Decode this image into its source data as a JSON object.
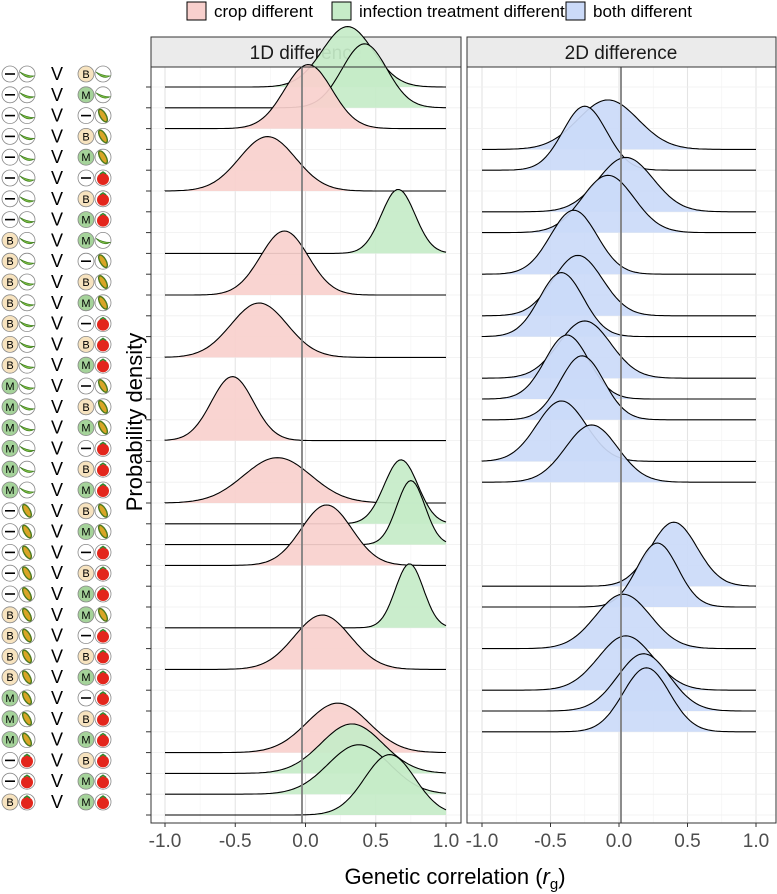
{
  "chart_data": {
    "type": "ridgeline-density",
    "xlabel": "Genetic correlation",
    "xlabel_symbol": "r",
    "xlabel_subscript": "g",
    "ylabel": "Probability density",
    "xlim": [
      -1.0,
      1.0
    ],
    "xticks": [
      -1.0,
      -0.5,
      0.0,
      0.5,
      1.0
    ],
    "xtick_labels": [
      "-1.0",
      "-0.5",
      "0.0",
      "0.5",
      "1.0"
    ],
    "reference_line_x": 0,
    "separator": "V",
    "legend": [
      {
        "key": "crop",
        "label": "crop different",
        "fill": "#f8d0cd"
      },
      {
        "key": "infection",
        "label": "infection treatment different",
        "fill": "#c6ecc8"
      },
      {
        "key": "both",
        "label": "both different",
        "fill": "#cbdaf8"
      }
    ],
    "panels": [
      {
        "title": "1D difference"
      },
      {
        "title": "2D difference"
      }
    ],
    "conditions": [
      {
        "id": "none",
        "label": "—",
        "color": "#ffffff"
      },
      {
        "id": "B",
        "label": "B",
        "color": "#f7e3bf"
      },
      {
        "id": "M",
        "label": "M",
        "color": "#a5d39a"
      }
    ],
    "crops": [
      {
        "id": "bean",
        "color": "#7ec142"
      },
      {
        "id": "maize",
        "color": "#6e9a2a"
      },
      {
        "id": "tomato",
        "color": "#e3261c"
      }
    ],
    "comparisons": [
      {
        "left": [
          "none",
          "bean"
        ],
        "right": [
          "B",
          "bean"
        ],
        "panel": 1,
        "cat": "infection",
        "mean": 0.3,
        "sd": 0.18
      },
      {
        "left": [
          "none",
          "bean"
        ],
        "right": [
          "M",
          "bean"
        ],
        "panel": 1,
        "cat": "infection",
        "mean": 0.42,
        "sd": 0.16
      },
      {
        "left": [
          "none",
          "bean"
        ],
        "right": [
          "none",
          "maize"
        ],
        "panel": 1,
        "cat": "crop",
        "mean": 0.02,
        "sd": 0.17
      },
      {
        "left": [
          "none",
          "bean"
        ],
        "right": [
          "B",
          "maize"
        ],
        "panel": 2,
        "cat": "both",
        "mean": -0.08,
        "sd": 0.22
      },
      {
        "left": [
          "none",
          "bean"
        ],
        "right": [
          "M",
          "maize"
        ],
        "panel": 2,
        "cat": "both",
        "mean": -0.25,
        "sd": 0.16
      },
      {
        "left": [
          "none",
          "bean"
        ],
        "right": [
          "none",
          "tomato"
        ],
        "panel": 1,
        "cat": "crop",
        "mean": -0.27,
        "sd": 0.2
      },
      {
        "left": [
          "none",
          "bean"
        ],
        "right": [
          "B",
          "tomato"
        ],
        "panel": 2,
        "cat": "both",
        "mean": 0.05,
        "sd": 0.2
      },
      {
        "left": [
          "none",
          "bean"
        ],
        "right": [
          "M",
          "tomato"
        ],
        "panel": 2,
        "cat": "both",
        "mean": -0.08,
        "sd": 0.19
      },
      {
        "left": [
          "B",
          "bean"
        ],
        "right": [
          "M",
          "bean"
        ],
        "panel": 1,
        "cat": "infection",
        "mean": 0.66,
        "sd": 0.12
      },
      {
        "left": [
          "B",
          "bean"
        ],
        "right": [
          "none",
          "maize"
        ],
        "panel": 2,
        "cat": "both",
        "mean": -0.33,
        "sd": 0.17
      },
      {
        "left": [
          "B",
          "bean"
        ],
        "right": [
          "B",
          "maize"
        ],
        "panel": 1,
        "cat": "crop",
        "mean": -0.15,
        "sd": 0.17
      },
      {
        "left": [
          "B",
          "bean"
        ],
        "right": [
          "M",
          "maize"
        ],
        "panel": 2,
        "cat": "both",
        "mean": -0.3,
        "sd": 0.18
      },
      {
        "left": [
          "B",
          "bean"
        ],
        "right": [
          "none",
          "tomato"
        ],
        "panel": 2,
        "cat": "both",
        "mean": -0.42,
        "sd": 0.16
      },
      {
        "left": [
          "B",
          "bean"
        ],
        "right": [
          "B",
          "tomato"
        ],
        "panel": 1,
        "cat": "crop",
        "mean": -0.33,
        "sd": 0.2
      },
      {
        "left": [
          "B",
          "bean"
        ],
        "right": [
          "M",
          "tomato"
        ],
        "panel": 2,
        "cat": "both",
        "mean": -0.25,
        "sd": 0.19
      },
      {
        "left": [
          "M",
          "bean"
        ],
        "right": [
          "none",
          "maize"
        ],
        "panel": 2,
        "cat": "both",
        "mean": -0.38,
        "sd": 0.16
      },
      {
        "left": [
          "M",
          "bean"
        ],
        "right": [
          "B",
          "maize"
        ],
        "panel": 2,
        "cat": "both",
        "mean": -0.27,
        "sd": 0.16
      },
      {
        "left": [
          "M",
          "bean"
        ],
        "right": [
          "M",
          "maize"
        ],
        "panel": 1,
        "cat": "crop",
        "mean": -0.52,
        "sd": 0.15
      },
      {
        "left": [
          "M",
          "bean"
        ],
        "right": [
          "none",
          "tomato"
        ],
        "panel": 2,
        "cat": "both",
        "mean": -0.42,
        "sd": 0.18
      },
      {
        "left": [
          "M",
          "bean"
        ],
        "right": [
          "B",
          "tomato"
        ],
        "panel": 2,
        "cat": "both",
        "mean": -0.2,
        "sd": 0.19
      },
      {
        "left": [
          "M",
          "bean"
        ],
        "right": [
          "M",
          "tomato"
        ],
        "panel": 1,
        "cat": "crop",
        "mean": -0.2,
        "sd": 0.24
      },
      {
        "left": [
          "none",
          "maize"
        ],
        "right": [
          "B",
          "maize"
        ],
        "panel": 1,
        "cat": "infection",
        "mean": 0.68,
        "sd": 0.12
      },
      {
        "left": [
          "none",
          "maize"
        ],
        "right": [
          "M",
          "maize"
        ],
        "panel": 1,
        "cat": "infection",
        "mean": 0.75,
        "sd": 0.1
      },
      {
        "left": [
          "none",
          "maize"
        ],
        "right": [
          "none",
          "tomato"
        ],
        "panel": 1,
        "cat": "crop",
        "mean": 0.15,
        "sd": 0.18
      },
      {
        "left": [
          "none",
          "maize"
        ],
        "right": [
          "B",
          "tomato"
        ],
        "panel": 2,
        "cat": "both",
        "mean": 0.4,
        "sd": 0.17
      },
      {
        "left": [
          "none",
          "maize"
        ],
        "right": [
          "M",
          "tomato"
        ],
        "panel": 2,
        "cat": "both",
        "mean": 0.28,
        "sd": 0.15
      },
      {
        "left": [
          "B",
          "maize"
        ],
        "right": [
          "M",
          "maize"
        ],
        "panel": 1,
        "cat": "infection",
        "mean": 0.74,
        "sd": 0.1
      },
      {
        "left": [
          "B",
          "maize"
        ],
        "right": [
          "none",
          "tomato"
        ],
        "panel": 2,
        "cat": "both",
        "mean": 0.03,
        "sd": 0.2
      },
      {
        "left": [
          "B",
          "maize"
        ],
        "right": [
          "B",
          "tomato"
        ],
        "panel": 1,
        "cat": "crop",
        "mean": 0.12,
        "sd": 0.2
      },
      {
        "left": [
          "B",
          "maize"
        ],
        "right": [
          "M",
          "tomato"
        ],
        "panel": 2,
        "cat": "both",
        "mean": 0.05,
        "sd": 0.2
      },
      {
        "left": [
          "M",
          "maize"
        ],
        "right": [
          "none",
          "tomato"
        ],
        "panel": 2,
        "cat": "both",
        "mean": 0.18,
        "sd": 0.19
      },
      {
        "left": [
          "M",
          "maize"
        ],
        "right": [
          "B",
          "tomato"
        ],
        "panel": 2,
        "cat": "both",
        "mean": 0.2,
        "sd": 0.17
      },
      {
        "left": [
          "M",
          "maize"
        ],
        "right": [
          "M",
          "tomato"
        ],
        "panel": 1,
        "cat": "crop",
        "mean": 0.23,
        "sd": 0.22
      },
      {
        "left": [
          "none",
          "tomato"
        ],
        "right": [
          "B",
          "tomato"
        ],
        "panel": 1,
        "cat": "infection",
        "mean": 0.33,
        "sd": 0.22
      },
      {
        "left": [
          "none",
          "tomato"
        ],
        "right": [
          "M",
          "tomato"
        ],
        "panel": 1,
        "cat": "infection",
        "mean": 0.38,
        "sd": 0.22
      },
      {
        "left": [
          "B",
          "tomato"
        ],
        "right": [
          "M",
          "tomato"
        ],
        "panel": 1,
        "cat": "infection",
        "mean": 0.6,
        "sd": 0.18
      }
    ]
  }
}
